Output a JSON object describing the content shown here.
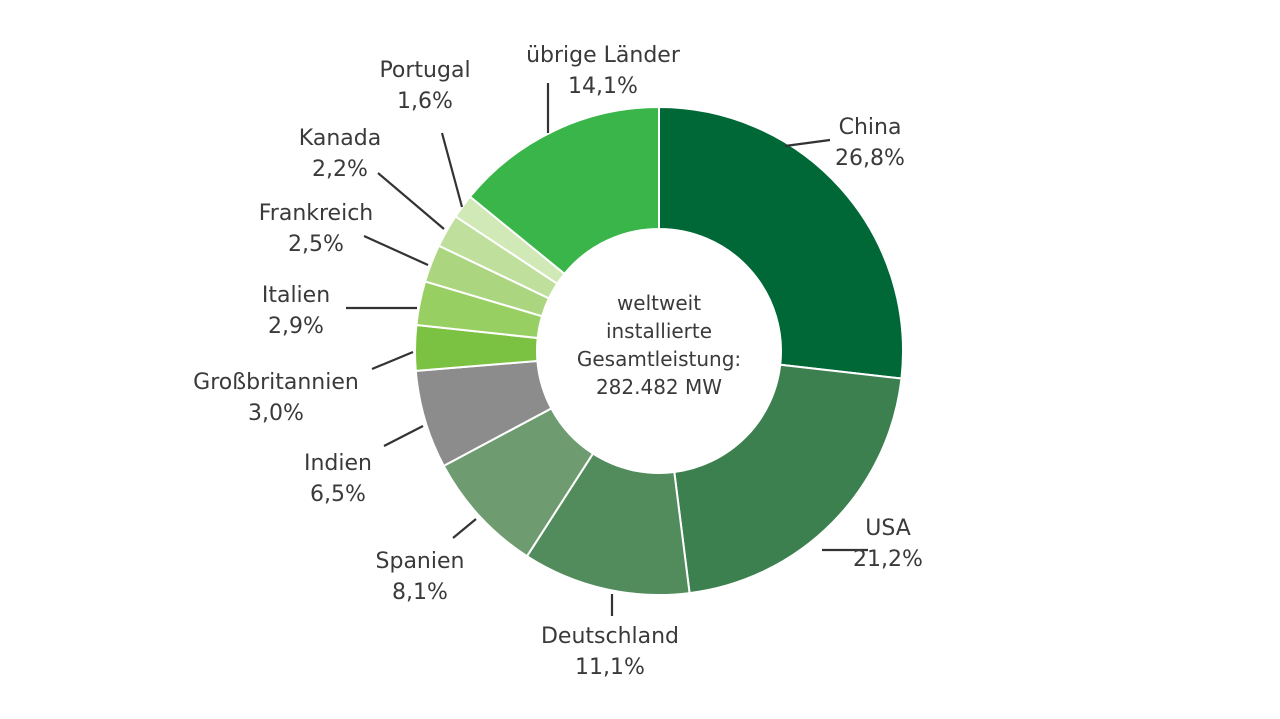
{
  "chart_data": {
    "type": "pie",
    "donut": true,
    "title": "",
    "center_text": [
      "weltweit",
      "installierte",
      "Gesamtleistung:",
      "282.482 MW"
    ],
    "slices": [
      {
        "label": "China",
        "value_text": "26,8%",
        "value": 26.8,
        "color": "#006837"
      },
      {
        "label": "USA",
        "value_text": "21,2%",
        "value": 21.2,
        "color": "#3d8050"
      },
      {
        "label": "Deutschland",
        "value_text": "11,1%",
        "value": 11.1,
        "color": "#528c5d"
      },
      {
        "label": "Spanien",
        "value_text": "8,1%",
        "value": 8.1,
        "color": "#6e9b70"
      },
      {
        "label": "Indien",
        "value_text": "6,5%",
        "value": 6.5,
        "color": "#8c8c8c"
      },
      {
        "label": "Großbritannien",
        "value_text": "3,0%",
        "value": 3.0,
        "color": "#7cc242"
      },
      {
        "label": "Italien",
        "value_text": "2,9%",
        "value": 2.9,
        "color": "#98cf63"
      },
      {
        "label": "Frankreich",
        "value_text": "2,5%",
        "value": 2.5,
        "color": "#abd67f"
      },
      {
        "label": "Kanada",
        "value_text": "2,2%",
        "value": 2.2,
        "color": "#bfe09c"
      },
      {
        "label": "Portugal",
        "value_text": "1,6%",
        "value": 1.6,
        "color": "#d1e9b6"
      },
      {
        "label": "übrige Länder",
        "value_text": "14,1%",
        "value": 14.1,
        "color": "#39b54a"
      }
    ]
  }
}
